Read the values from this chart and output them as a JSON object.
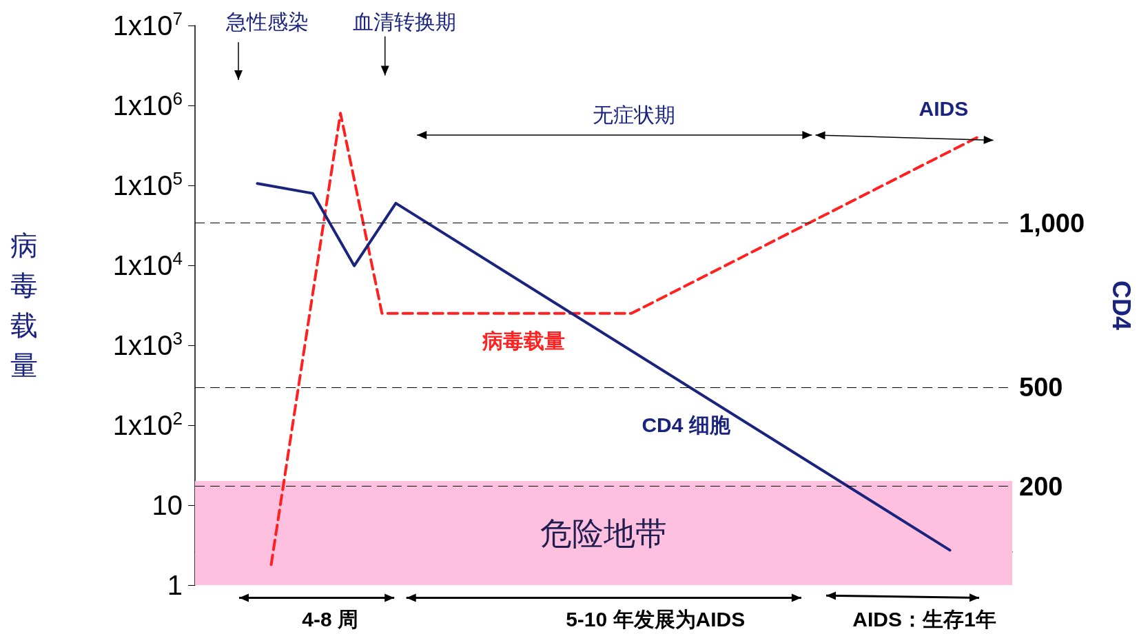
{
  "chart_data": {
    "type": "line",
    "ylabel": "病毒载量",
    "y2label": "CD4",
    "annotations": [
      "急性感染",
      "血清转换期",
      "无症状期",
      "AIDS",
      "4-8 周",
      "5-10 年发展为AIDS",
      "AIDS：生存1年"
    ],
    "categories": [
      null,
      null,
      null,
      null,
      null,
      null,
      null,
      null,
      null,
      null,
      null,
      null,
      null,
      null,
      null,
      null,
      null,
      null,
      null,
      null,
      null,
      null,
      null,
      null,
      null,
      null,
      null,
      null,
      null,
      null,
      null,
      null,
      null,
      null,
      null,
      null,
      null,
      null,
      null,
      null,
      null,
      null,
      null,
      null,
      null,
      null,
      null,
      null,
      null,
      null,
      null,
      null,
      null,
      null,
      null,
      null,
      null,
      null,
      null
    ],
    "series": [
      {
        "name": "病毒载量",
        "color": "#ff2020",
        "line_style": "dashed",
        "values": [
          null,
          null,
          null,
          null,
          null,
          1.8,
          null,
          null,
          null,
          null,
          800000,
          null,
          null,
          2500,
          null,
          null,
          null,
          null,
          null,
          null,
          null,
          null,
          null,
          null,
          null,
          null,
          null,
          null,
          null,
          null,
          null,
          2500,
          null,
          null,
          null,
          null,
          null,
          null,
          null,
          null,
          null,
          null,
          null,
          null,
          null,
          null,
          null,
          null,
          null,
          null,
          null,
          null,
          null,
          null,
          null,
          null,
          400000,
          null,
          null
        ]
      },
      {
        "name": "CD4 细胞",
        "color": "#1a237e",
        "line_style": "solid",
        "axis": "y2",
        "values": [
          null,
          null,
          null,
          null,
          1120,
          null,
          null,
          null,
          1090,
          null,
          null,
          870,
          null,
          null,
          1060,
          null,
          null,
          null,
          null,
          null,
          null,
          null,
          null,
          null,
          null,
          null,
          null,
          null,
          null,
          null,
          null,
          null,
          null,
          null,
          null,
          null,
          null,
          null,
          null,
          null,
          null,
          null,
          null,
          null,
          null,
          null,
          null,
          null,
          null,
          null,
          null,
          null,
          null,
          null,
          6,
          null,
          null,
          null,
          null
        ]
      }
    ],
    "ylim": [
      1,
      10000000
    ],
    "yticks": [
      1,
      10,
      {
        "value": 100,
        "label": "1x10$^{2}$"
      },
      {
        "value": 1000,
        "label": "1x10$^{3}$"
      },
      {
        "value": 10000,
        "label": "1x10$^{4}$"
      },
      {
        "value": 100000,
        "label": "1x10$^{5}$"
      },
      {
        "value": 1000000,
        "label": "1x10$^{6}$"
      },
      {
        "value": 10000000,
        "label": "1x10$^{7}$"
      }
    ],
    "y2lim": [
      -100,
      1600
    ],
    "y2ticks": [
      {
        "value": 1000,
        "label": "1,000"
      },
      500,
      200
    ],
    "log": "y",
    "grid": false,
    "legend": false,
    "marker": "none",
    "tick_labels": "y",
    "ref_lines": [
      {
        "axis": "y2",
        "value": 1000,
        "color": "#000000",
        "line_style": "dashed"
      },
      {
        "axis": "y2",
        "value": 500,
        "color": "#000000",
        "line_style": "dashed"
      },
      {
        "axis": "y2",
        "value": 200,
        "color": "#000000",
        "line_style": "dashed"
      }
    ],
    "bands": [
      {
        "axis": "y",
        "from": 1,
        "to": 20,
        "label": "危险地带",
        "color": "#ffc0e0"
      }
    ]
  }
}
